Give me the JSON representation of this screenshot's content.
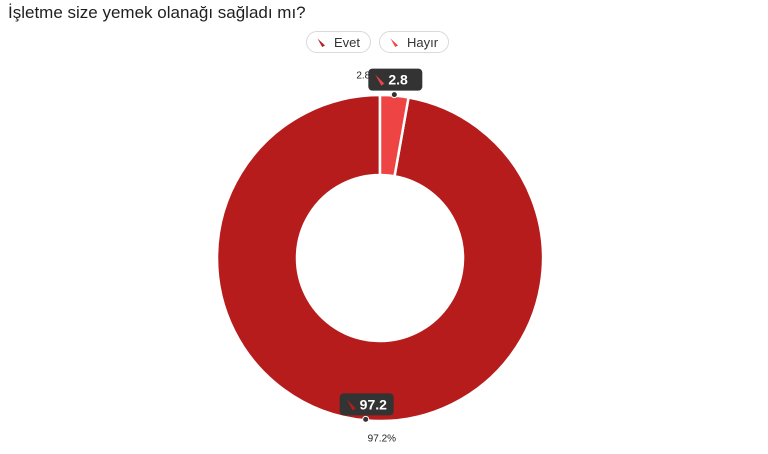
{
  "chart_data": {
    "type": "pie",
    "title": "İşletme size yemek olanağı sağladı mı?",
    "categories": [
      "Evet",
      "Hayır"
    ],
    "values": [
      97.2,
      2.8
    ],
    "colors": [
      "#b71c1c",
      "#ef4444"
    ],
    "data_labels": [
      "97.2",
      "2.8"
    ],
    "outer_labels": [
      "97.2%",
      "2.8%"
    ],
    "donut": true,
    "legend_position": "top-center"
  }
}
